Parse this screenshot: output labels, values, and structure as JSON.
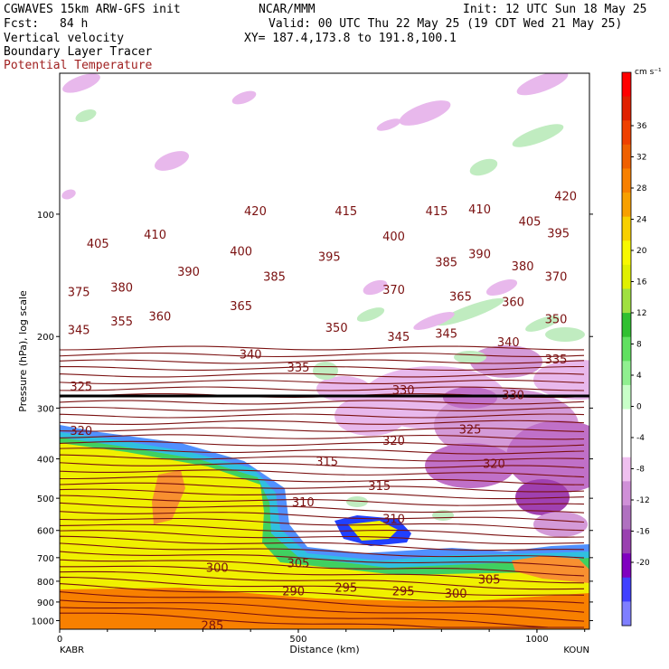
{
  "header": {
    "model": "CGWAVES 15km ARW-GFS init",
    "org": "NCAR/MMM",
    "init": "Init: 12 UTC Sun 18 May 25",
    "fcst_label": "Fcst:",
    "fcst_value": "84 h",
    "valid": "Valid: 00 UTC Thu 22 May 25 (19 CDT Wed 21 May 25)",
    "field1": "Vertical velocity",
    "xy": "XY= 187.4,173.8 to 191.8,100.1",
    "field2": "Boundary Layer Tracer",
    "field3": "Potential Temperature"
  },
  "colors": {
    "isentrope": "#7a1010",
    "tropopause": "#000000",
    "scale": [
      "#7f7fff",
      "#4040ff",
      "#8000c0",
      "#9a40b0",
      "#b070c0",
      "#d090d8",
      "#f0c0f0",
      "#ffffff",
      "#ffffff",
      "#c8ffc8",
      "#90f090",
      "#60e060",
      "#30c030",
      "#a0e040",
      "#e0f000",
      "#f8f800",
      "#f8d000",
      "#f8a000",
      "#f88000",
      "#f06000",
      "#f04000",
      "#e02000",
      "#ff0000"
    ]
  },
  "chart_data": {
    "type": "heatmap",
    "xlabel": "Distance (km)",
    "ylabel": "Pressure (hPa), log scale",
    "x_ticks": [
      "0",
      "500",
      "1000"
    ],
    "x_endpoints": [
      "KABR",
      "KOUN"
    ],
    "xlim": [
      0,
      1110
    ],
    "y_ticks": [
      "100",
      "200",
      "300",
      "400",
      "500",
      "600",
      "700",
      "800",
      "900",
      "1000"
    ],
    "ylim_hpa": [
      1050,
      45
    ],
    "y_scale": "log",
    "colorbar_units": "cm s⁻¹",
    "colorbar_ticks": [
      "36",
      "32",
      "28",
      "24",
      "20",
      "16",
      "12",
      "8",
      "4",
      "0",
      "-4",
      "-8",
      "-12",
      "-16",
      "-20"
    ],
    "isentropes_K": [
      285,
      290,
      295,
      300,
      305,
      310,
      315,
      320,
      325,
      330,
      335,
      340,
      345,
      350,
      355,
      360,
      365,
      370,
      375,
      380,
      385,
      390,
      395,
      400,
      405,
      410,
      415,
      420
    ],
    "theta_labels": [
      {
        "text": "420",
        "x": 410,
        "p": 98
      },
      {
        "text": "415",
        "x": 600,
        "p": 98
      },
      {
        "text": "415",
        "x": 790,
        "p": 98
      },
      {
        "text": "410",
        "x": 880,
        "p": 97
      },
      {
        "text": "420",
        "x": 1060,
        "p": 90
      },
      {
        "text": "410",
        "x": 200,
        "p": 112
      },
      {
        "text": "405",
        "x": 80,
        "p": 118
      },
      {
        "text": "405",
        "x": 985,
        "p": 104
      },
      {
        "text": "395",
        "x": 1045,
        "p": 111
      },
      {
        "text": "400",
        "x": 380,
        "p": 123
      },
      {
        "text": "400",
        "x": 700,
        "p": 113
      },
      {
        "text": "395",
        "x": 565,
        "p": 127
      },
      {
        "text": "390",
        "x": 880,
        "p": 125
      },
      {
        "text": "385",
        "x": 810,
        "p": 131
      },
      {
        "text": "380",
        "x": 970,
        "p": 134
      },
      {
        "text": "370",
        "x": 1040,
        "p": 142
      },
      {
        "text": "390",
        "x": 270,
        "p": 138
      },
      {
        "text": "385",
        "x": 450,
        "p": 142
      },
      {
        "text": "370",
        "x": 700,
        "p": 153
      },
      {
        "text": "365",
        "x": 840,
        "p": 159
      },
      {
        "text": "360",
        "x": 950,
        "p": 164
      },
      {
        "text": "375",
        "x": 40,
        "p": 155
      },
      {
        "text": "380",
        "x": 130,
        "p": 151
      },
      {
        "text": "365",
        "x": 380,
        "p": 168
      },
      {
        "text": "355",
        "x": 130,
        "p": 183
      },
      {
        "text": "360",
        "x": 210,
        "p": 178
      },
      {
        "text": "350",
        "x": 1040,
        "p": 181
      },
      {
        "text": "350",
        "x": 580,
        "p": 190
      },
      {
        "text": "345",
        "x": 710,
        "p": 200
      },
      {
        "text": "345",
        "x": 810,
        "p": 196
      },
      {
        "text": "345",
        "x": 40,
        "p": 192
      },
      {
        "text": "340",
        "x": 400,
        "p": 221
      },
      {
        "text": "340",
        "x": 940,
        "p": 206
      },
      {
        "text": "335",
        "x": 500,
        "p": 238
      },
      {
        "text": "335",
        "x": 1040,
        "p": 227
      },
      {
        "text": "330",
        "x": 720,
        "p": 270
      },
      {
        "text": "330",
        "x": 950,
        "p": 278
      },
      {
        "text": "325",
        "x": 45,
        "p": 265
      },
      {
        "text": "325",
        "x": 860,
        "p": 338
      },
      {
        "text": "320",
        "x": 45,
        "p": 340
      },
      {
        "text": "320",
        "x": 700,
        "p": 360
      },
      {
        "text": "320",
        "x": 910,
        "p": 410
      },
      {
        "text": "315",
        "x": 560,
        "p": 405
      },
      {
        "text": "315",
        "x": 670,
        "p": 465
      },
      {
        "text": "310",
        "x": 510,
        "p": 510
      },
      {
        "text": "310",
        "x": 700,
        "p": 560
      },
      {
        "text": "305",
        "x": 500,
        "p": 720
      },
      {
        "text": "305",
        "x": 900,
        "p": 790
      },
      {
        "text": "300",
        "x": 330,
        "p": 740
      },
      {
        "text": "300",
        "x": 830,
        "p": 855
      },
      {
        "text": "295",
        "x": 600,
        "p": 828
      },
      {
        "text": "295",
        "x": 720,
        "p": 845
      },
      {
        "text": "290",
        "x": 490,
        "p": 845
      },
      {
        "text": "285",
        "x": 320,
        "p": 1025
      }
    ]
  }
}
